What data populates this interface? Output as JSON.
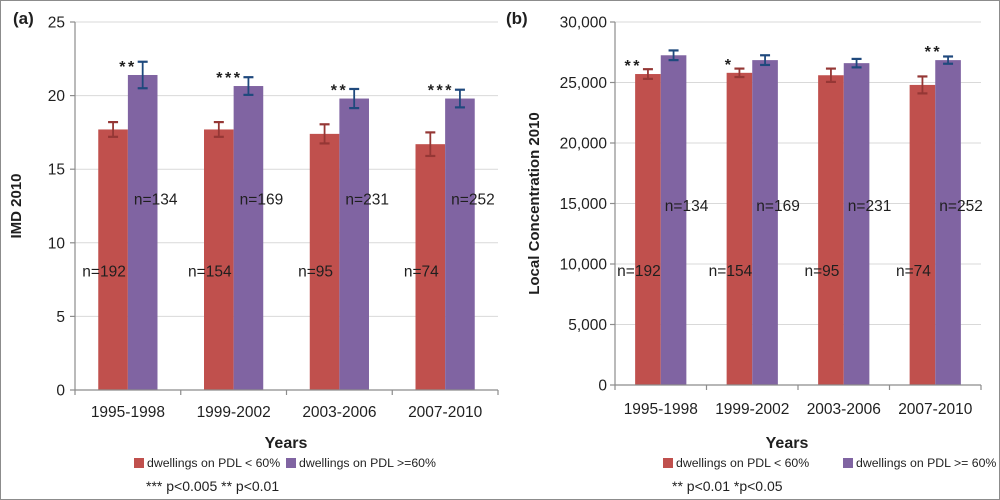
{
  "figure_title": "",
  "text_color": "#1f1f1f",
  "gridline_color": "#d9d9d9",
  "axis_color": "#8c8c8c",
  "chart_data": [
    {
      "type": "bar",
      "panel_label": "(a)",
      "ylabel": "IMD 2010",
      "xlabel": "Years",
      "ylim": [
        0,
        25
      ],
      "yticks": [
        0,
        5,
        10,
        15,
        20,
        25
      ],
      "ytick_labels": [
        "0",
        "5",
        "10",
        "15",
        "20",
        "25"
      ],
      "categories": [
        "1995-1998",
        "1999-2002",
        "2003-2006",
        "2007-2010"
      ],
      "grid": true,
      "legend_position": "bottom",
      "series": [
        {
          "name": "dwellings on PDL < 60%",
          "color": "#c0504d",
          "error_color": "#953735",
          "values": [
            17.7,
            17.7,
            17.4,
            16.7
          ],
          "errors": [
            0.5,
            0.5,
            0.65,
            0.8
          ],
          "n_labels": [
            "n=192",
            "n=154",
            "n=95",
            "n=74"
          ],
          "n_label_value": 7.7
        },
        {
          "name": "dwellings on PDL >=60%",
          "color": "#8064a2",
          "error_color": "#1f497d",
          "values": [
            21.4,
            20.65,
            19.8,
            19.8
          ],
          "errors": [
            0.9,
            0.6,
            0.65,
            0.6
          ],
          "n_labels": [
            "n=134",
            "n=169",
            "n=231",
            "n=252"
          ],
          "n_label_value": 12.6
        }
      ],
      "sig_markers": [
        {
          "category_index": 0,
          "series_index": 1,
          "label": "**"
        },
        {
          "category_index": 1,
          "series_index": 1,
          "label": "***"
        },
        {
          "category_index": 2,
          "series_index": 1,
          "label": "**"
        },
        {
          "category_index": 3,
          "series_index": 1,
          "label": "***"
        }
      ],
      "footnote": "*** p<0.005 ** p<0.01"
    },
    {
      "type": "bar",
      "panel_label": "(b)",
      "ylabel": "Local Concentration 2010",
      "xlabel": "Years",
      "ylim": [
        0,
        30000
      ],
      "yticks": [
        0,
        5000,
        10000,
        15000,
        20000,
        25000,
        30000
      ],
      "ytick_labels": [
        "0",
        "5,000",
        "10,000",
        "15,000",
        "20,000",
        "25,000",
        "30,000"
      ],
      "categories": [
        "1995-1998",
        "1999-2002",
        "2003-2006",
        "2007-2010"
      ],
      "grid": true,
      "legend_position": "bottom",
      "series": [
        {
          "name": "dwellings on PDL < 60%",
          "color": "#c0504d",
          "error_color": "#953735",
          "values": [
            25700,
            25800,
            25600,
            24800
          ],
          "errors": [
            400,
            350,
            550,
            700
          ],
          "n_labels": [
            "n=192",
            "n=154",
            "n=95",
            "n=74"
          ],
          "n_label_value": 9000
        },
        {
          "name": "dwellings on PDL >= 60%",
          "color": "#8064a2",
          "error_color": "#1f497d",
          "values": [
            27250,
            26850,
            26600,
            26850
          ],
          "errors": [
            400,
            400,
            350,
            300
          ],
          "n_labels": [
            "n=134",
            "n=169",
            "n=231",
            "n=252"
          ],
          "n_label_value": 14400
        }
      ],
      "sig_markers": [
        {
          "category_index": 0,
          "series_index": 0,
          "label": "**"
        },
        {
          "category_index": 1,
          "series_index": 0,
          "label": "*"
        },
        {
          "category_index": 3,
          "series_index": 1,
          "label": "**"
        }
      ],
      "footnote": "** p<0.01 *p<0.05"
    }
  ]
}
